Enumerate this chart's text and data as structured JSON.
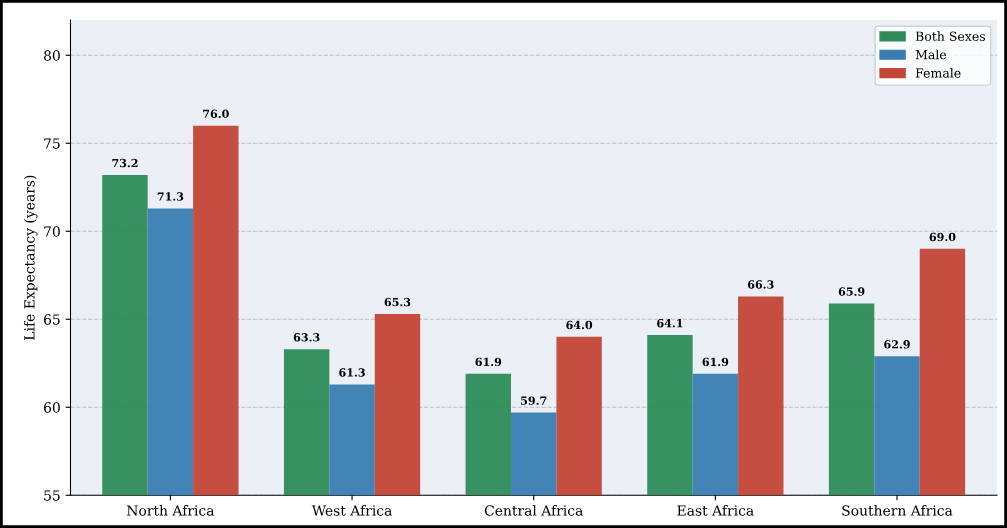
{
  "chart_data": {
    "type": "bar",
    "ylabel": "Life Expectancy (years)",
    "categories": [
      "North Africa",
      "West Africa",
      "Central Africa",
      "East Africa",
      "Southern Africa"
    ],
    "series": [
      {
        "name": "Both Sexes",
        "color": "#2e8b57",
        "values": [
          73.2,
          63.3,
          61.9,
          64.1,
          65.9
        ],
        "value_labels": [
          "73.2",
          "63.3",
          "61.9",
          "64.1",
          "65.9"
        ]
      },
      {
        "name": "Male",
        "color": "#3a7db3",
        "values": [
          71.3,
          61.3,
          59.7,
          61.9,
          62.9
        ],
        "value_labels": [
          "71.3",
          "61.3",
          "59.7",
          "61.9",
          "62.9"
        ]
      },
      {
        "name": "Female",
        "color": "#c44536",
        "values": [
          76.0,
          65.3,
          64.0,
          66.3,
          69.0
        ],
        "value_labels": [
          "76.0",
          "65.3",
          "64.0",
          "66.3",
          "69.0"
        ]
      }
    ],
    "ylim": [
      55,
      82
    ],
    "yticks": [
      55,
      60,
      65,
      70,
      75,
      80
    ],
    "grid": "y",
    "legend": "top right"
  }
}
